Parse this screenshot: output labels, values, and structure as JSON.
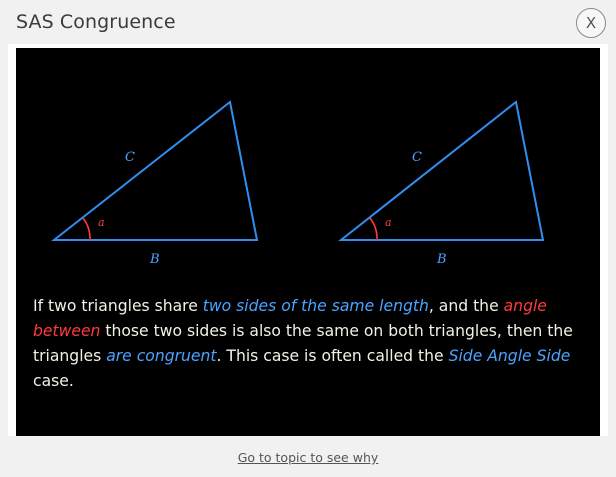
{
  "dialog": {
    "title": "SAS Congruence",
    "close_label": "X"
  },
  "figure": {
    "triangles": [
      {
        "side_c_label": "C",
        "side_b_label": "B",
        "angle_label": "a"
      },
      {
        "side_c_label": "C",
        "side_b_label": "B",
        "angle_label": "a"
      }
    ],
    "colors": {
      "edge": "#2f8ff0",
      "angle": "#ff3b3b",
      "label": "#4aa3ff",
      "background": "#000000"
    }
  },
  "description": {
    "part1": "If two triangles share ",
    "hl1": "two sides of the same length",
    "part2": ", and the ",
    "hl2": "angle between",
    "part3": " those two sides is also the same on both triangles, then the triangles ",
    "hl3": "are congruent",
    "part4": ". This case is often called the ",
    "hl4": "Side Angle Side",
    "part5": " case."
  },
  "footer": {
    "link_text": "Go to topic to see why"
  }
}
